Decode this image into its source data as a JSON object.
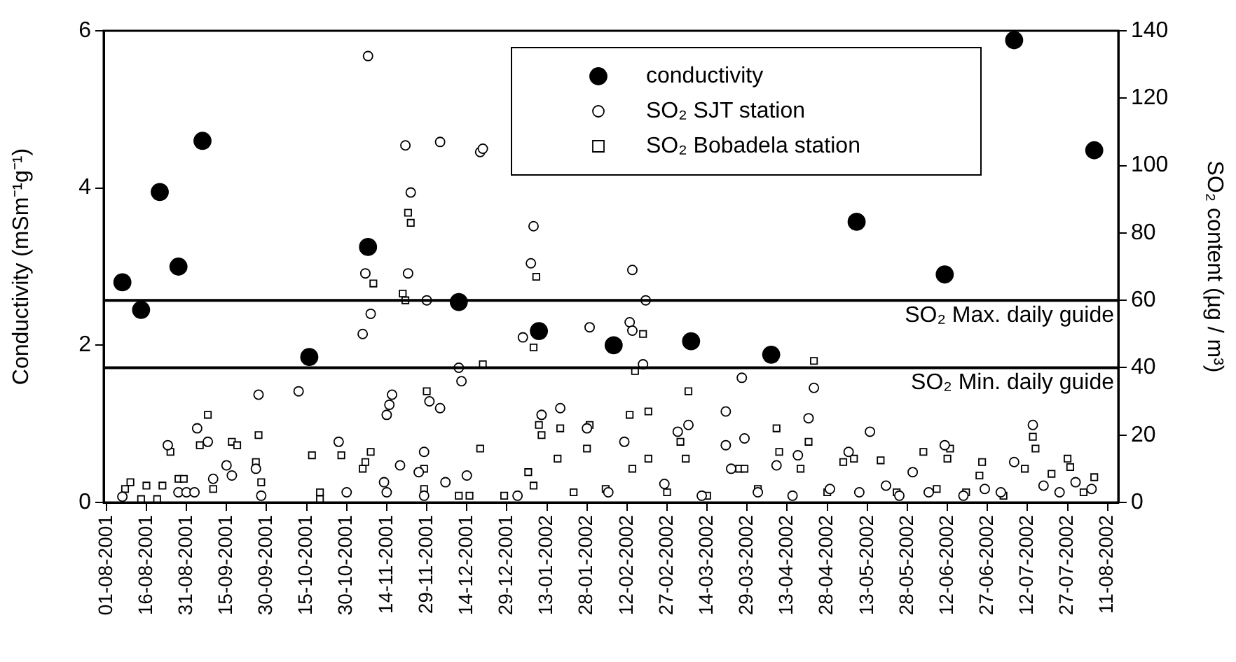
{
  "chart_data": {
    "type": "scatter",
    "ylabel": "Conductivity (mSm⁻¹g⁻¹)",
    "y2label": "SO₂ content (µg / m³)",
    "xlim": [
      "2001-07-31",
      "2002-08-15"
    ],
    "xticks": [
      {
        "value": "2001-08-01",
        "label": "01-08-2001"
      },
      {
        "value": "2001-08-16",
        "label": "16-08-2001"
      },
      {
        "value": "2001-08-31",
        "label": "31-08-2001"
      },
      {
        "value": "2001-09-15",
        "label": "15-09-2001"
      },
      {
        "value": "2001-09-30",
        "label": "30-09-2001"
      },
      {
        "value": "2001-10-15",
        "label": "15-10-2001"
      },
      {
        "value": "2001-10-30",
        "label": "30-10-2001"
      },
      {
        "value": "2001-11-14",
        "label": "14-11-2001"
      },
      {
        "value": "2001-11-29",
        "label": "29-11-2001"
      },
      {
        "value": "2001-12-14",
        "label": "14-12-2001"
      },
      {
        "value": "2001-12-29",
        "label": "29-12-2001"
      },
      {
        "value": "2002-01-13",
        "label": "13-01-2002"
      },
      {
        "value": "2002-01-28",
        "label": "28-01-2002"
      },
      {
        "value": "2002-02-12",
        "label": "12-02-2002"
      },
      {
        "value": "2002-02-27",
        "label": "27-02-2002"
      },
      {
        "value": "2002-03-14",
        "label": "14-03-2002"
      },
      {
        "value": "2002-03-29",
        "label": "29-03-2002"
      },
      {
        "value": "2002-04-13",
        "label": "13-04-2002"
      },
      {
        "value": "2002-04-28",
        "label": "28-04-2002"
      },
      {
        "value": "2002-05-13",
        "label": "13-05-2002"
      },
      {
        "value": "2002-05-28",
        "label": "28-05-2002"
      },
      {
        "value": "2002-06-12",
        "label": "12-06-2002"
      },
      {
        "value": "2002-06-27",
        "label": "27-06-2002"
      },
      {
        "value": "2002-07-12",
        "label": "12-07-2002"
      },
      {
        "value": "2002-07-27",
        "label": "27-07-2002"
      },
      {
        "value": "2002-08-11",
        "label": "11-08-2002"
      }
    ],
    "ylim": [
      0,
      6
    ],
    "yticks": [
      0,
      2,
      4,
      6
    ],
    "y2lim": [
      0,
      140
    ],
    "y2ticks": [
      0,
      20,
      40,
      60,
      80,
      100,
      120,
      140
    ],
    "grid": false,
    "legend": "top right",
    "ref_lines": [
      {
        "axis": "y2",
        "value": 60,
        "label": "SO₂ Max. daily guide",
        "color": "#000000"
      },
      {
        "axis": "y2",
        "value": 40,
        "label": "SO₂ Min. daily guide",
        "color": "#000000"
      }
    ],
    "series": [
      {
        "name": "conductivity",
        "color": "#000000",
        "marker": "circle",
        "x": [
          "2001-08-07",
          "2001-08-14",
          "2001-08-21",
          "2001-08-28",
          "2001-09-06",
          "2001-10-16",
          "2001-11-07",
          "2001-12-11",
          "2002-01-10",
          "2002-02-07",
          "2002-03-08",
          "2002-04-07",
          "2002-05-09",
          "2002-06-11",
          "2002-07-07",
          "2002-08-06"
        ],
        "values": [
          2.8,
          2.45,
          3.95,
          3.0,
          4.6,
          1.85,
          3.25,
          2.55,
          2.18,
          2.0,
          2.05,
          1.88,
          3.57,
          2.9,
          5.88,
          4.48
        ]
      },
      {
        "name": "SO₂ SJT station",
        "color": "#000000",
        "marker": "circle",
        "axis": "y2",
        "x": [
          "2001-08-07",
          "2001-08-24",
          "2001-08-28",
          "2001-08-31",
          "2001-09-03",
          "2001-09-04",
          "2001-09-08",
          "2001-09-10",
          "2001-09-15",
          "2001-09-17",
          "2001-09-26",
          "2001-09-27",
          "2001-09-28",
          "2001-10-12",
          "2001-10-27",
          "2001-10-30",
          "2001-11-05",
          "2001-11-06",
          "2001-11-07",
          "2001-11-08",
          "2001-11-13",
          "2001-11-14",
          "2001-11-14",
          "2001-11-15",
          "2001-11-16",
          "2001-11-19",
          "2001-11-21",
          "2001-11-22",
          "2001-11-23",
          "2001-11-26",
          "2001-11-28",
          "2001-11-28",
          "2001-11-29",
          "2001-11-30",
          "2001-12-04",
          "2001-12-04",
          "2001-12-06",
          "2001-12-11",
          "2001-12-12",
          "2001-12-14",
          "2001-12-19",
          "2001-12-20",
          "2002-01-02",
          "2002-01-04",
          "2002-01-07",
          "2002-01-08",
          "2002-01-11",
          "2002-01-18",
          "2002-01-28",
          "2002-01-29",
          "2002-02-05",
          "2002-02-11",
          "2002-02-13",
          "2002-02-14",
          "2002-02-14",
          "2002-02-18",
          "2002-02-19",
          "2002-02-26",
          "2002-03-03",
          "2002-03-07",
          "2002-03-12",
          "2002-03-21",
          "2002-03-21",
          "2002-03-23",
          "2002-03-27",
          "2002-03-28",
          "2002-04-02",
          "2002-04-09",
          "2002-04-15",
          "2002-04-17",
          "2002-04-21",
          "2002-04-23",
          "2002-04-29",
          "2002-05-06",
          "2002-05-10",
          "2002-05-14",
          "2002-05-20",
          "2002-05-25",
          "2002-05-30",
          "2002-06-05",
          "2002-06-11",
          "2002-06-18",
          "2002-06-26",
          "2002-07-02",
          "2002-07-07",
          "2002-07-14",
          "2002-07-18",
          "2002-07-24",
          "2002-07-30",
          "2002-08-05"
        ],
        "values": [
          1.7,
          17,
          3,
          3,
          3,
          22,
          18,
          7,
          11,
          8,
          10,
          32,
          2,
          33,
          18,
          3,
          50,
          68,
          132.5,
          56,
          6,
          3,
          26,
          29,
          32,
          11,
          106,
          68,
          92,
          9,
          2,
          15,
          60,
          30,
          28,
          107,
          6,
          40,
          36,
          8,
          104,
          105,
          2,
          49,
          71,
          82,
          26,
          28,
          22,
          52,
          3,
          18,
          53.5,
          51,
          69,
          41,
          60,
          5.5,
          21,
          23,
          2,
          27,
          17,
          10,
          37,
          19,
          3,
          11,
          2,
          14,
          25,
          34,
          4,
          15,
          3,
          21,
          5,
          2,
          9,
          3,
          17,
          2,
          4,
          3,
          12,
          23,
          5,
          3,
          6,
          4
        ]
      },
      {
        "name": "SO₂ Bobadela station",
        "color": "#000000",
        "marker": "square",
        "axis": "y2",
        "x": [
          "2001-08-08",
          "2001-08-10",
          "2001-08-14",
          "2001-08-16",
          "2001-08-20",
          "2001-08-22",
          "2001-08-25",
          "2001-08-28",
          "2001-08-30",
          "2001-09-05",
          "2001-09-08",
          "2001-09-10",
          "2001-09-15",
          "2001-09-17",
          "2001-09-19",
          "2001-09-26",
          "2001-09-27",
          "2001-09-28",
          "2001-10-17",
          "2001-10-20",
          "2001-10-20",
          "2001-10-28",
          "2001-11-05",
          "2001-11-06",
          "2001-11-08",
          "2001-11-09",
          "2001-11-20",
          "2001-11-21",
          "2001-11-22",
          "2001-11-23",
          "2001-11-28",
          "2001-11-28",
          "2001-11-29",
          "2001-12-11",
          "2001-12-15",
          "2001-12-19",
          "2001-12-20",
          "2001-12-28",
          "2002-01-06",
          "2002-01-08",
          "2002-01-08",
          "2002-01-09",
          "2002-01-10",
          "2002-01-11",
          "2002-01-17",
          "2002-01-18",
          "2002-01-23",
          "2002-01-28",
          "2002-01-29",
          "2002-02-04",
          "2002-02-13",
          "2002-02-14",
          "2002-02-15",
          "2002-02-18",
          "2002-02-20",
          "2002-02-20",
          "2002-02-27",
          "2002-03-04",
          "2002-03-06",
          "2002-03-07",
          "2002-03-14",
          "2002-03-26",
          "2002-03-28",
          "2002-04-02",
          "2002-04-09",
          "2002-04-10",
          "2002-04-18",
          "2002-04-21",
          "2002-04-23",
          "2002-04-28",
          "2002-05-04",
          "2002-05-08",
          "2002-05-18",
          "2002-05-24",
          "2002-06-03",
          "2002-06-08",
          "2002-06-12",
          "2002-06-13",
          "2002-06-19",
          "2002-06-24",
          "2002-06-25",
          "2002-07-03",
          "2002-07-11",
          "2002-07-14",
          "2002-07-15",
          "2002-07-21",
          "2002-07-27",
          "2002-07-28",
          "2002-08-02",
          "2002-08-06"
        ],
        "values": [
          4,
          6,
          1,
          5,
          1,
          5,
          15,
          7,
          7,
          17,
          26,
          4,
          11,
          18,
          17,
          12,
          20,
          6,
          14,
          3,
          1,
          14,
          10,
          12,
          15,
          65,
          62,
          60,
          86,
          83,
          4,
          10,
          33,
          2,
          2,
          16,
          41,
          2,
          9,
          5,
          46,
          67,
          23,
          20,
          13,
          22,
          3,
          16,
          23,
          4,
          26,
          10,
          39,
          50,
          27,
          13,
          3,
          18,
          13,
          33,
          2,
          10,
          10,
          4,
          22,
          15,
          10,
          18,
          42,
          3,
          12,
          13,
          12.5,
          3,
          15,
          4,
          13,
          16,
          3,
          8,
          12,
          2,
          10,
          19.5,
          16,
          8.5,
          13,
          10.5,
          3,
          7.5
        ]
      }
    ]
  }
}
